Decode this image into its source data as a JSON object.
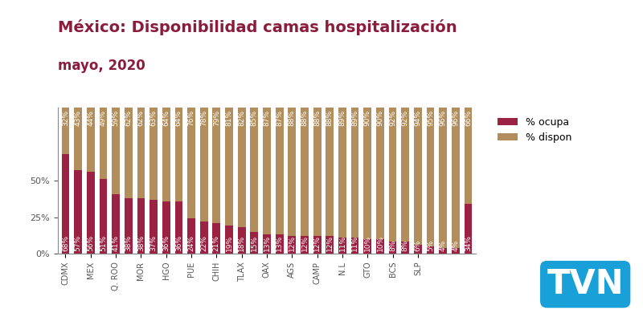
{
  "chart_data": {
    "type": "bar",
    "stacked": true,
    "data_labels": true,
    "title": "México: Disponibilidad camas hospitalización",
    "subtitle": "mayo, 2020",
    "annotations": [
      "TVN"
    ],
    "categories": [
      "CDMX",
      null,
      "MEX",
      null,
      "Q. ROO",
      null,
      "MOR",
      null,
      "HGO",
      null,
      "PUE",
      null,
      "CHIH",
      null,
      "TLAX",
      null,
      "OAX",
      null,
      "AGS",
      null,
      "CAMP",
      null,
      "N.L",
      null,
      "GTO",
      null,
      "BCS",
      null,
      "SLP",
      null,
      null,
      null,
      null
    ],
    "series": [
      {
        "name": "% ocupa",
        "color": "#9b2242",
        "values": [
          68,
          57,
          56,
          51,
          41,
          38,
          38,
          37,
          36,
          36,
          24,
          22,
          21,
          19,
          18,
          15,
          13,
          13,
          12,
          12,
          12,
          12,
          11,
          11,
          10,
          10,
          8,
          8,
          6,
          5,
          4,
          4,
          34
        ],
        "value_labels": [
          "68%",
          "57%",
          "56%",
          "51%",
          "41%",
          "38%",
          "38%",
          "37%",
          "36%",
          "36%",
          "24%",
          "22%",
          "21%",
          "19%",
          "18%",
          "15%",
          "13%",
          "13%",
          "12%",
          "12%",
          "12%",
          "12%",
          "11%",
          "11%",
          "10%",
          "10%",
          "8%",
          "8%",
          "6%",
          "5%",
          "4%",
          "4%",
          "34%"
        ]
      },
      {
        "name": "% dispon",
        "color": "#b38e5d",
        "values": [
          32,
          43,
          44,
          49,
          59,
          62,
          62,
          63,
          64,
          64,
          76,
          78,
          79,
          81,
          82,
          85,
          87,
          87,
          88,
          88,
          88,
          88,
          89,
          89,
          90,
          90,
          92,
          92,
          94,
          95,
          96,
          96,
          66
        ],
        "value_labels": [
          "32%",
          "43%",
          "44%",
          "49%",
          "59%",
          "62%",
          "62%",
          "63%",
          "64%",
          "64%",
          "76%",
          "78%",
          "79%",
          "81%",
          "82%",
          "85%",
          "87%",
          "87%",
          "88%",
          "88%",
          "88%",
          "88%",
          "89%",
          "89%",
          "90%",
          "90%",
          "92%",
          "92%",
          "94%",
          "95%",
          "96%",
          "96%",
          "66%"
        ]
      }
    ],
    "ylim": [
      0,
      100
    ],
    "yticks": [
      {
        "value": 0,
        "label": "0%"
      },
      {
        "value": 25,
        "label": "25%"
      },
      {
        "value": 50,
        "label": "50%"
      }
    ],
    "legend": "upper left",
    "grid": false
  }
}
